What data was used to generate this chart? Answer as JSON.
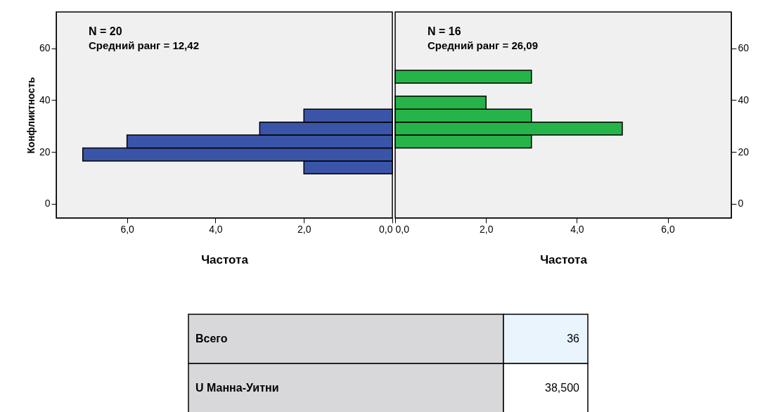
{
  "chart_data": [
    {
      "type": "histogram",
      "orientation": "horizontal",
      "bins": [
        11.5,
        16.5,
        21.5,
        26.5,
        31.5,
        36.5
      ],
      "values": [
        2,
        7,
        6,
        3,
        2
      ],
      "color": "#3a55a8",
      "xlim": [
        7.6,
        0
      ],
      "xticks": [
        {
          "value": 6,
          "label": "6,0"
        },
        {
          "value": 4,
          "label": "4,0"
        },
        {
          "value": 2,
          "label": "2,0"
        },
        {
          "value": 0,
          "label": "0,0"
        }
      ],
      "ylim": [
        -5.5,
        74
      ],
      "yticks": [
        0,
        20,
        40,
        60
      ],
      "xlabel": "Частота",
      "ylabel": "Конфликтность",
      "grid": false,
      "annotations": [
        "N = 20",
        "Средний ранг = 12,42"
      ]
    },
    {
      "type": "histogram",
      "orientation": "horizontal",
      "bins": [
        21.5,
        26.5,
        31.5,
        36.5,
        41.5,
        46.5,
        51.5
      ],
      "values": [
        3,
        5,
        3,
        2,
        0,
        3
      ],
      "color": "#26b44a",
      "xlim": [
        0,
        7.4
      ],
      "xticks": [
        {
          "value": 0,
          "label": "0,0"
        },
        {
          "value": 2,
          "label": "2,0"
        },
        {
          "value": 4,
          "label": "4,0"
        },
        {
          "value": 6,
          "label": "6,0"
        }
      ],
      "ylim": [
        -5.5,
        74
      ],
      "yticks": [
        0,
        20,
        40,
        60
      ],
      "xlabel": "Частота",
      "grid": false,
      "annotations": [
        "N = 16",
        "Средний ранг = 26,09"
      ]
    },
    {
      "type": "other",
      "annotations": [
        "Всего",
        "36",
        "U Манна-Уитни",
        "38,500"
      ]
    }
  ]
}
